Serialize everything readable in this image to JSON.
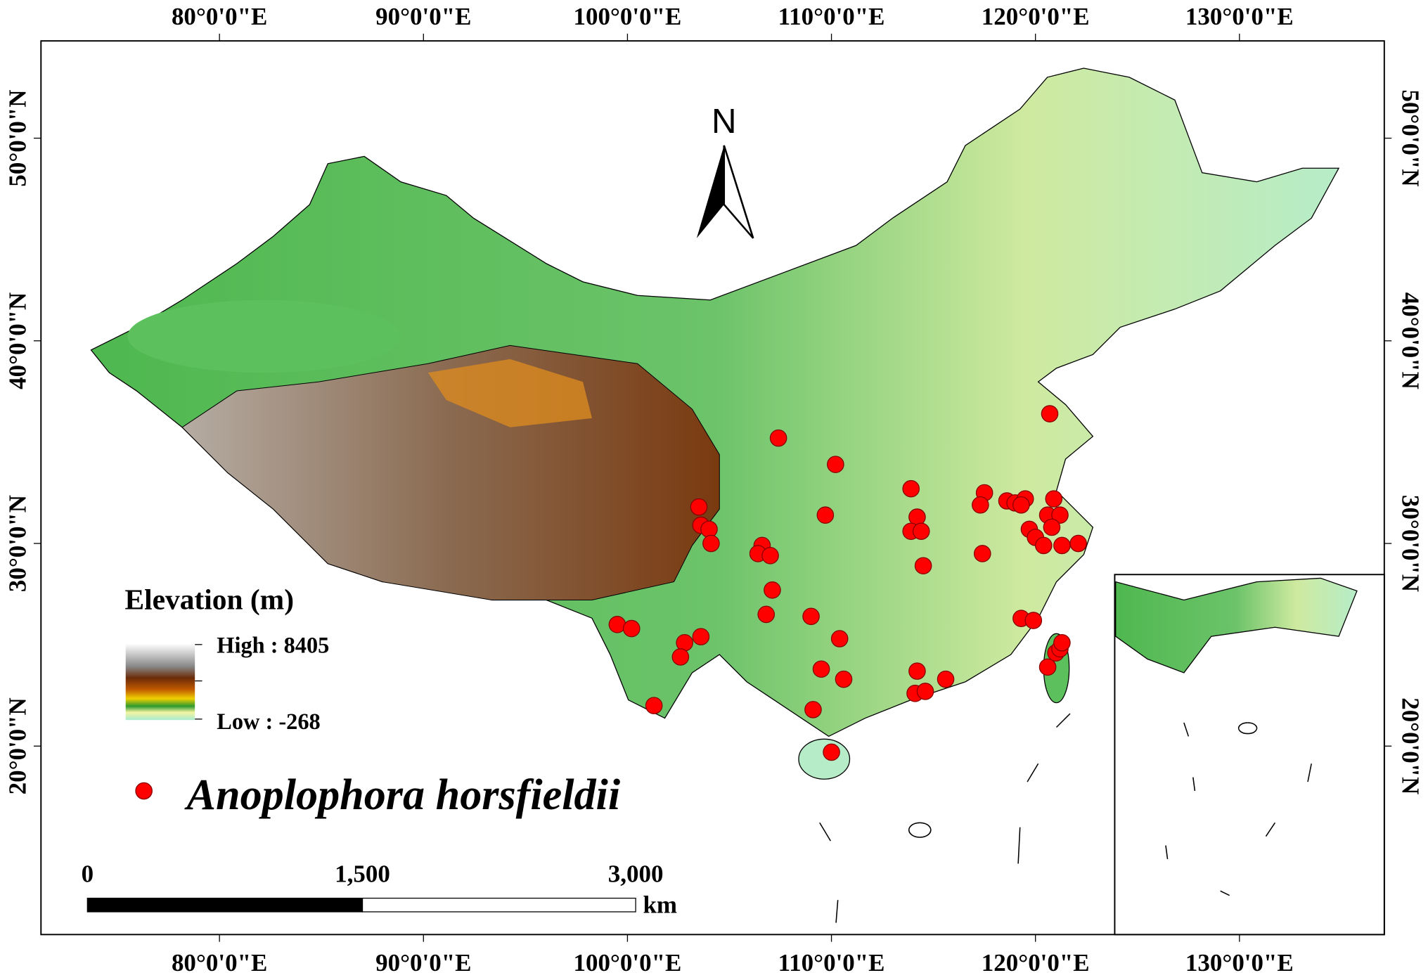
{
  "map": {
    "xlim": [
      71.25,
      137.1
    ],
    "ylim": [
      10.7,
      54.8
    ],
    "xticks": [
      {
        "value": 80,
        "label": "80°0'0\"E"
      },
      {
        "value": 90,
        "label": "90°0'0\"E"
      },
      {
        "value": 100,
        "label": "100°0'0\"E"
      },
      {
        "value": 110,
        "label": "110°0'0\"E"
      },
      {
        "value": 120,
        "label": "120°0'0\"E"
      },
      {
        "value": 130,
        "label": "130°0'0\"E"
      }
    ],
    "yticks": [
      {
        "value": 20,
        "label": "20°0'0\"N"
      },
      {
        "value": 30,
        "label": "30°0'0\"N"
      },
      {
        "value": 40,
        "label": "40°0'0\"N"
      },
      {
        "value": 50,
        "label": "50°0'0\"N"
      }
    ],
    "north": "N",
    "legend": {
      "title": "Elevation (m)",
      "high": "High : 8405",
      "low": "Low : -268",
      "species": "Anoplophora horsfieldii",
      "point_color": "#ff0000"
    },
    "scale_bar": {
      "labels": [
        "0",
        "1,500",
        "3,000"
      ],
      "unit": "km"
    },
    "points": {
      "lon": [
        107.4,
        110.2,
        120.7,
        113.9,
        117.5,
        117.3,
        118.6,
        119.0,
        119.5,
        119.3,
        120.9,
        120.6,
        121.2,
        120.8,
        119.7,
        120.0,
        121.3,
        122.1,
        114.2,
        113.9,
        114.4,
        114.5,
        117.4,
        109.7,
        103.5,
        103.6,
        104.0,
        104.1,
        106.6,
        106.4,
        107.0,
        107.1,
        106.8,
        109.0,
        110.4,
        109.5,
        110.6,
        109.1,
        110.0,
        99.5,
        100.2,
        102.8,
        103.6,
        102.6,
        101.3,
        114.2,
        114.1,
        114.6,
        115.6,
        119.3,
        119.9,
        121.0,
        121.2,
        120.6,
        121.3,
        120.4
      ],
      "lat": [
        35.2,
        33.9,
        36.4,
        32.7,
        32.5,
        31.9,
        32.1,
        32.0,
        32.2,
        31.9,
        32.2,
        31.4,
        31.4,
        30.8,
        30.7,
        30.3,
        29.9,
        30.0,
        31.3,
        30.6,
        30.6,
        28.9,
        29.5,
        31.4,
        31.8,
        30.9,
        30.7,
        30.0,
        29.9,
        29.5,
        29.4,
        27.7,
        26.5,
        26.4,
        25.3,
        23.8,
        23.3,
        21.8,
        19.7,
        26.0,
        25.8,
        25.1,
        25.4,
        24.4,
        22.0,
        23.7,
        22.6,
        22.7,
        23.3,
        26.3,
        26.2,
        24.6,
        24.8,
        23.9,
        25.1,
        29.9
      ]
    }
  }
}
